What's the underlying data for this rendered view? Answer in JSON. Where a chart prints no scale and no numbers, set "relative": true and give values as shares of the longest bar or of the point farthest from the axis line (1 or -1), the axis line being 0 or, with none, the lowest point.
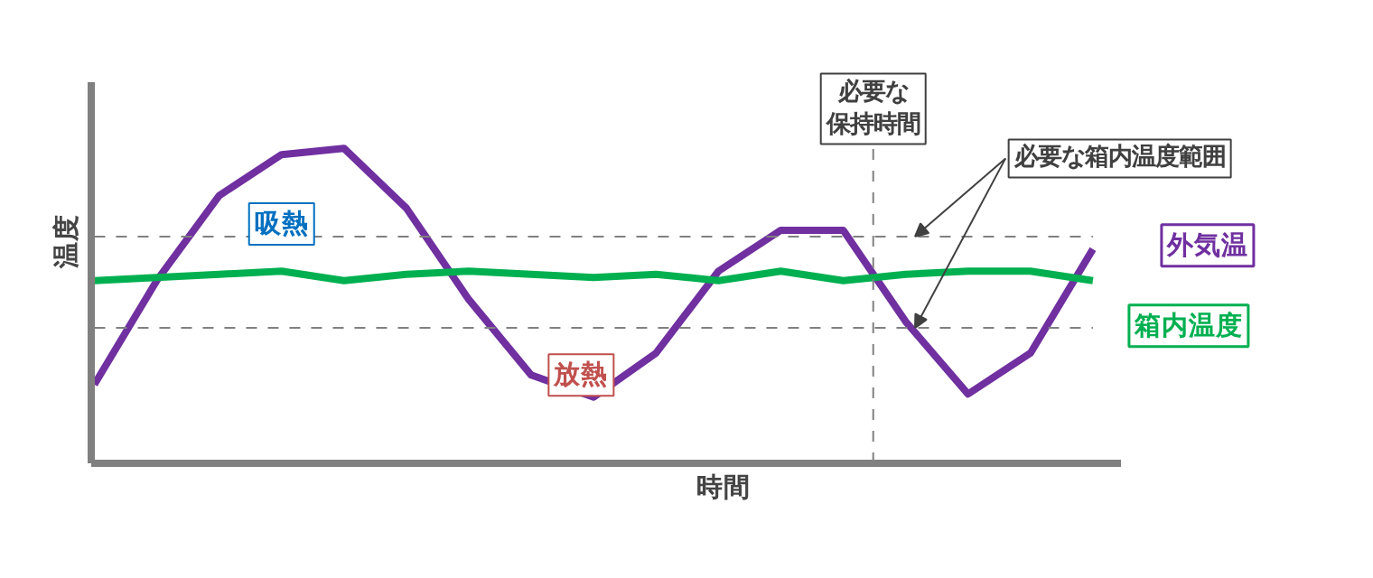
{
  "chart_data": {
    "type": "line",
    "relative": true,
    "xlabel": "時間",
    "ylabel": "温度",
    "categories": [
      null,
      null,
      null,
      null,
      null,
      null,
      null,
      null,
      null,
      null,
      null,
      null,
      null,
      null,
      null,
      null,
      null
    ],
    "series": [
      {
        "name": "外気温",
        "color": "#7030a0",
        "values": [
          0.25,
          0.58,
          0.85,
          0.98,
          1,
          0.81,
          0.52,
          0.28,
          0.21,
          0.35,
          0.61,
          0.74,
          0.74,
          0.45,
          0.22,
          0.35,
          0.68
        ]
      },
      {
        "name": "箱内温度",
        "color": "#00b050",
        "values": [
          0.58,
          0.59,
          0.6,
          0.61,
          0.58,
          0.6,
          0.61,
          0.6,
          0.59,
          0.6,
          0.58,
          0.61,
          0.58,
          0.6,
          0.61,
          0.61,
          0.58
        ]
      }
    ],
    "ref_lines": [
      {
        "axis": "y",
        "value": 0.72,
        "label": "必要な箱内温度範囲",
        "color": "#808080",
        "line_style": "dashed"
      },
      {
        "axis": "y",
        "value": 0.43,
        "color": "#808080",
        "line_style": "dashed"
      }
    ],
    "annotations": [
      "吸熱",
      "放熱",
      "必要な保持時間"
    ],
    "legend": false,
    "line_style": "solid",
    "marker": "none"
  }
}
